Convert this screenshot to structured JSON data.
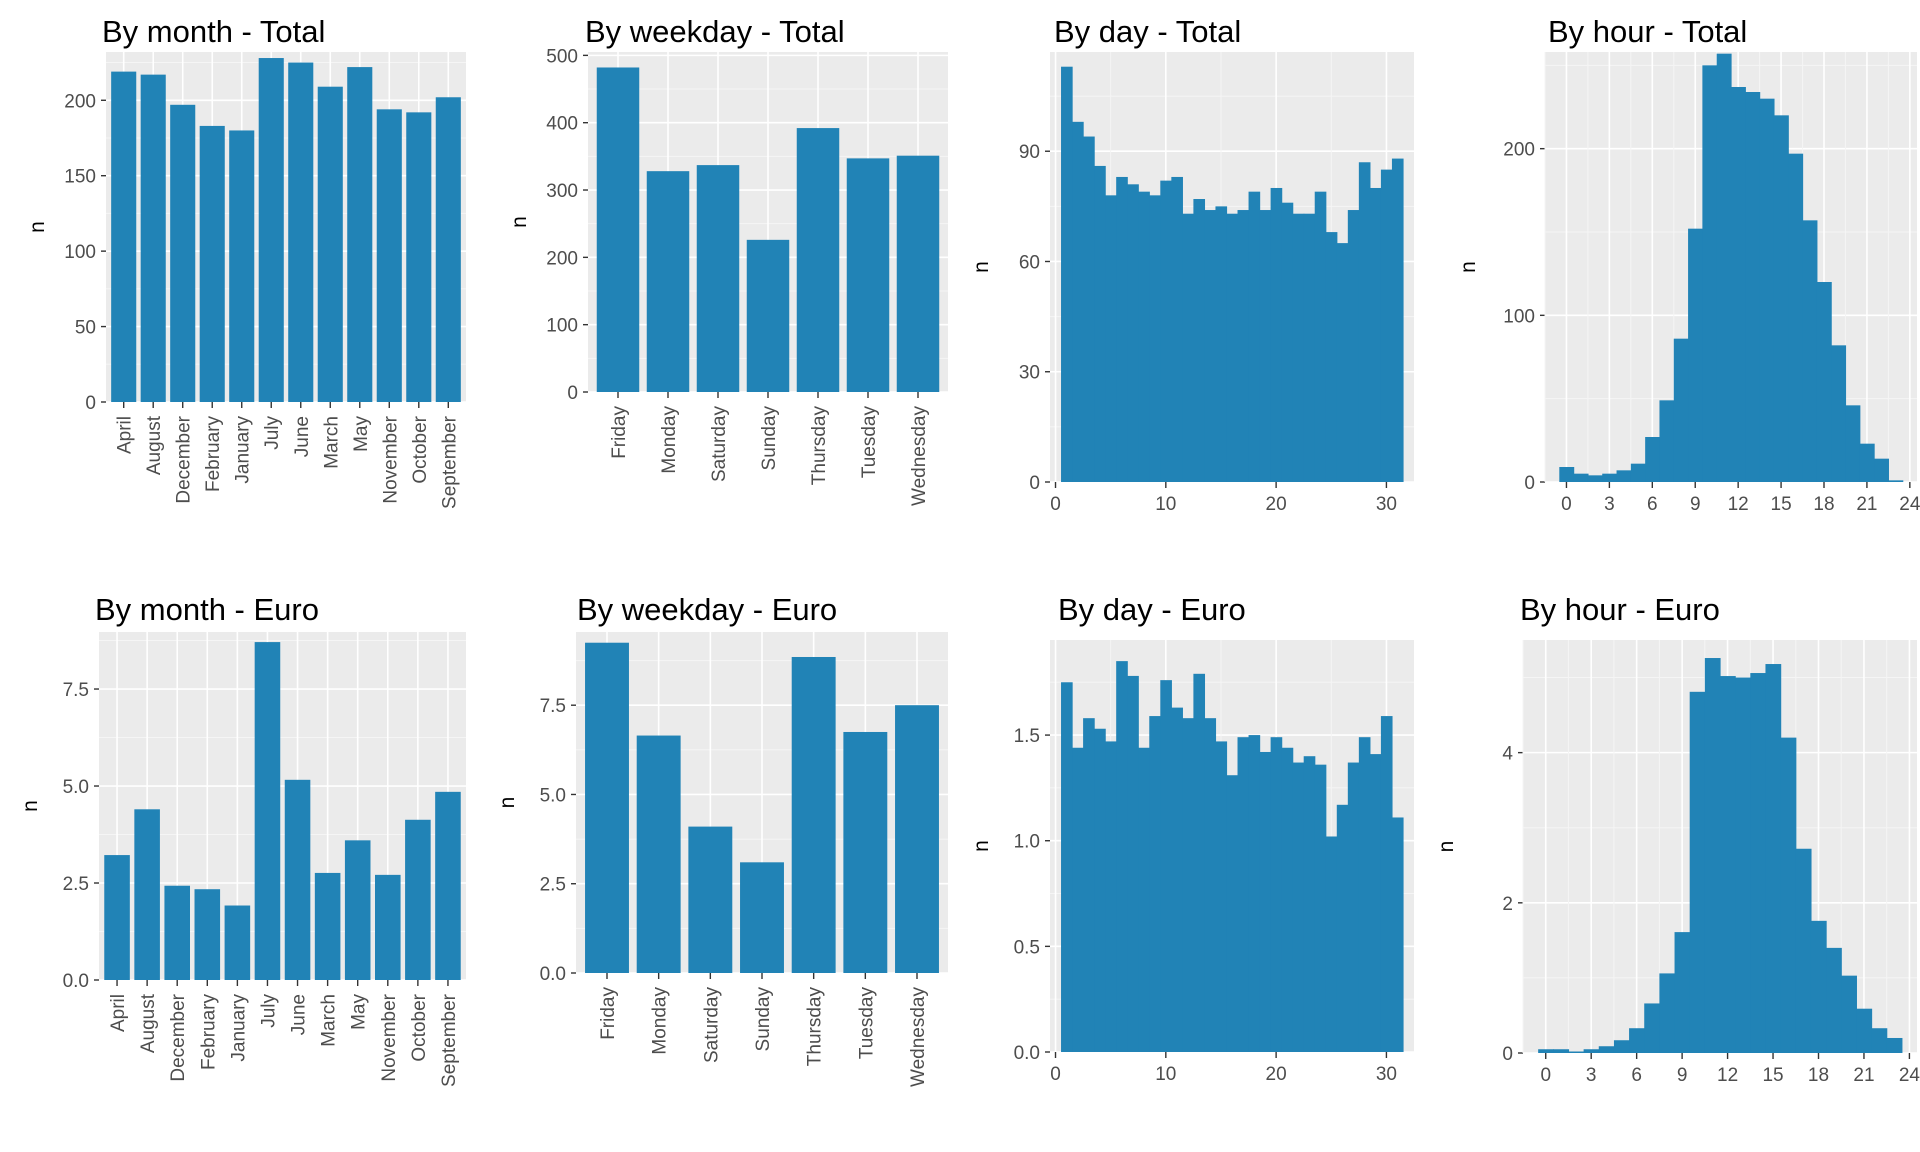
{
  "colors": {
    "bar": "#2183b6",
    "panel_bg": "#ebebeb",
    "grid_major": "#ffffff",
    "grid_minor": "#f5f5f5",
    "tick_text": "#4d4d4d"
  },
  "chart_data": [
    {
      "type": "bar",
      "title": "By month - Total",
      "xlabel": "",
      "ylabel": "n",
      "categories": [
        "April",
        "August",
        "December",
        "February",
        "January",
        "July",
        "June",
        "March",
        "May",
        "November",
        "October",
        "September"
      ],
      "values": [
        219,
        217,
        197,
        183,
        180,
        228,
        225,
        209,
        222,
        194,
        192,
        202
      ],
      "ylim": [
        0,
        232
      ],
      "yticks": [
        0,
        50,
        100,
        150,
        200
      ],
      "ytick_labels": [
        "0",
        "50",
        "100",
        "150",
        "200"
      ],
      "xtick_rotate": true,
      "grid": true
    },
    {
      "type": "bar",
      "title": "By weekday - Total",
      "xlabel": "",
      "ylabel": "n",
      "categories": [
        "Friday",
        "Monday",
        "Saturday",
        "Sunday",
        "Thursday",
        "Tuesday",
        "Wednesday"
      ],
      "values": [
        482,
        328,
        337,
        226,
        392,
        347,
        351
      ],
      "ylim": [
        0,
        505
      ],
      "yticks": [
        0,
        100,
        200,
        300,
        400,
        500
      ],
      "ytick_labels": [
        "0",
        "100",
        "200",
        "300",
        "400",
        "500"
      ],
      "xtick_rotate": true,
      "grid": true
    },
    {
      "type": "bar",
      "title": "By day - Total",
      "xlabel": "",
      "ylabel": "n",
      "x": [
        1,
        2,
        3,
        4,
        5,
        6,
        7,
        8,
        9,
        10,
        11,
        12,
        13,
        14,
        15,
        16,
        17,
        18,
        19,
        20,
        21,
        22,
        23,
        24,
        25,
        26,
        27,
        28,
        29,
        30,
        31
      ],
      "values": [
        113,
        98,
        94,
        86,
        78,
        83,
        81,
        79,
        78,
        82,
        83,
        73,
        77,
        74,
        75,
        73,
        74,
        79,
        74,
        80,
        76,
        73,
        73,
        79,
        68,
        65,
        74,
        87,
        80,
        85,
        88
      ],
      "xlim": [
        -0.5,
        32.5
      ],
      "ylim": [
        0,
        117
      ],
      "yticks": [
        0,
        30,
        60,
        90
      ],
      "ytick_labels": [
        "0",
        "30",
        "60",
        "90"
      ],
      "xticks": [
        0,
        10,
        20,
        30
      ],
      "xtick_labels": [
        "0",
        "10",
        "20",
        "30"
      ],
      "xtick_rotate": false,
      "grid": true
    },
    {
      "type": "bar",
      "title": "By hour - Total",
      "xlabel": "",
      "ylabel": "n",
      "x": [
        0,
        1,
        2,
        3,
        4,
        5,
        6,
        7,
        8,
        9,
        10,
        11,
        12,
        13,
        14,
        15,
        16,
        17,
        18,
        19,
        20,
        21,
        22,
        23
      ],
      "values": [
        9,
        5,
        4,
        5,
        7,
        11,
        27,
        49,
        86,
        152,
        250,
        257,
        237,
        234,
        230,
        220,
        197,
        157,
        120,
        82,
        46,
        23,
        14,
        1
      ],
      "xlim": [
        -1.5,
        24.5
      ],
      "ylim": [
        0,
        258
      ],
      "yticks": [
        0,
        100,
        200
      ],
      "ytick_labels": [
        "0",
        "100",
        "200"
      ],
      "xticks": [
        0,
        3,
        6,
        9,
        12,
        15,
        18,
        21,
        24
      ],
      "xtick_labels": [
        "0",
        "3",
        "6",
        "9",
        "12",
        "15",
        "18",
        "21",
        "24"
      ],
      "xtick_rotate": false,
      "grid": true
    },
    {
      "type": "bar",
      "title": "By month - Euro",
      "xlabel": "",
      "ylabel": "n",
      "categories": [
        "April",
        "August",
        "December",
        "February",
        "January",
        "July",
        "June",
        "March",
        "May",
        "November",
        "October",
        "September"
      ],
      "values": [
        3.22,
        4.4,
        2.43,
        2.34,
        1.92,
        8.71,
        5.16,
        2.76,
        3.6,
        2.71,
        4.13,
        4.85
      ],
      "ylim": [
        0,
        8.97
      ],
      "yticks": [
        0,
        2.5,
        5,
        7.5
      ],
      "ytick_labels": [
        "0.0",
        "2.5",
        "5.0",
        "7.5"
      ],
      "xtick_rotate": true,
      "grid": true
    },
    {
      "type": "bar",
      "title": "By weekday - Euro",
      "xlabel": "",
      "ylabel": "n",
      "categories": [
        "Friday",
        "Monday",
        "Saturday",
        "Sunday",
        "Thursday",
        "Tuesday",
        "Wednesday"
      ],
      "values": [
        9.25,
        6.65,
        4.1,
        3.1,
        8.85,
        6.75,
        7.5
      ],
      "ylim": [
        0,
        9.55
      ],
      "yticks": [
        0,
        2.5,
        5,
        7.5
      ],
      "ytick_labels": [
        "0.0",
        "2.5",
        "5.0",
        "7.5"
      ],
      "xtick_rotate": true,
      "grid": true
    },
    {
      "type": "bar",
      "title": "By day - Euro",
      "xlabel": "",
      "ylabel": "n",
      "x": [
        1,
        2,
        3,
        4,
        5,
        6,
        7,
        8,
        9,
        10,
        11,
        12,
        13,
        14,
        15,
        16,
        17,
        18,
        19,
        20,
        21,
        22,
        23,
        24,
        25,
        26,
        27,
        28,
        29,
        30,
        31
      ],
      "values": [
        1.75,
        1.44,
        1.58,
        1.53,
        1.47,
        1.85,
        1.78,
        1.44,
        1.59,
        1.76,
        1.63,
        1.58,
        1.79,
        1.58,
        1.47,
        1.31,
        1.49,
        1.5,
        1.42,
        1.49,
        1.44,
        1.37,
        1.4,
        1.36,
        1.02,
        1.17,
        1.37,
        1.49,
        1.41,
        1.59,
        1.11
      ],
      "xlim": [
        -0.5,
        32.5
      ],
      "ylim": [
        0,
        1.95
      ],
      "yticks": [
        0,
        0.5,
        1.0,
        1.5
      ],
      "ytick_labels": [
        "0.0",
        "0.5",
        "1.0",
        "1.5"
      ],
      "xticks": [
        0,
        10,
        20,
        30
      ],
      "xtick_labels": [
        "0",
        "10",
        "20",
        "30"
      ],
      "xtick_rotate": false,
      "grid": true
    },
    {
      "type": "bar",
      "title": "By hour - Euro",
      "xlabel": "",
      "ylabel": "n",
      "x": [
        0,
        1,
        2,
        3,
        4,
        5,
        6,
        7,
        8,
        9,
        10,
        11,
        12,
        13,
        14,
        15,
        16,
        17,
        18,
        19,
        20,
        21,
        22,
        23
      ],
      "values": [
        0.05,
        0.05,
        0.02,
        0.05,
        0.09,
        0.17,
        0.33,
        0.66,
        1.06,
        1.61,
        4.81,
        5.26,
        5.02,
        5.0,
        5.06,
        5.18,
        4.2,
        2.72,
        1.76,
        1.4,
        1.03,
        0.59,
        0.33,
        0.2
      ],
      "xlim": [
        -1.5,
        24.5
      ],
      "ylim": [
        0,
        5.5
      ],
      "yticks": [
        0,
        2,
        4
      ],
      "ytick_labels": [
        "0",
        "2",
        "4"
      ],
      "xticks": [
        0,
        3,
        6,
        9,
        12,
        15,
        18,
        21,
        24
      ],
      "xtick_labels": [
        "0",
        "3",
        "6",
        "9",
        "12",
        "15",
        "18",
        "21",
        "24"
      ],
      "xtick_rotate": false,
      "grid": true
    }
  ]
}
